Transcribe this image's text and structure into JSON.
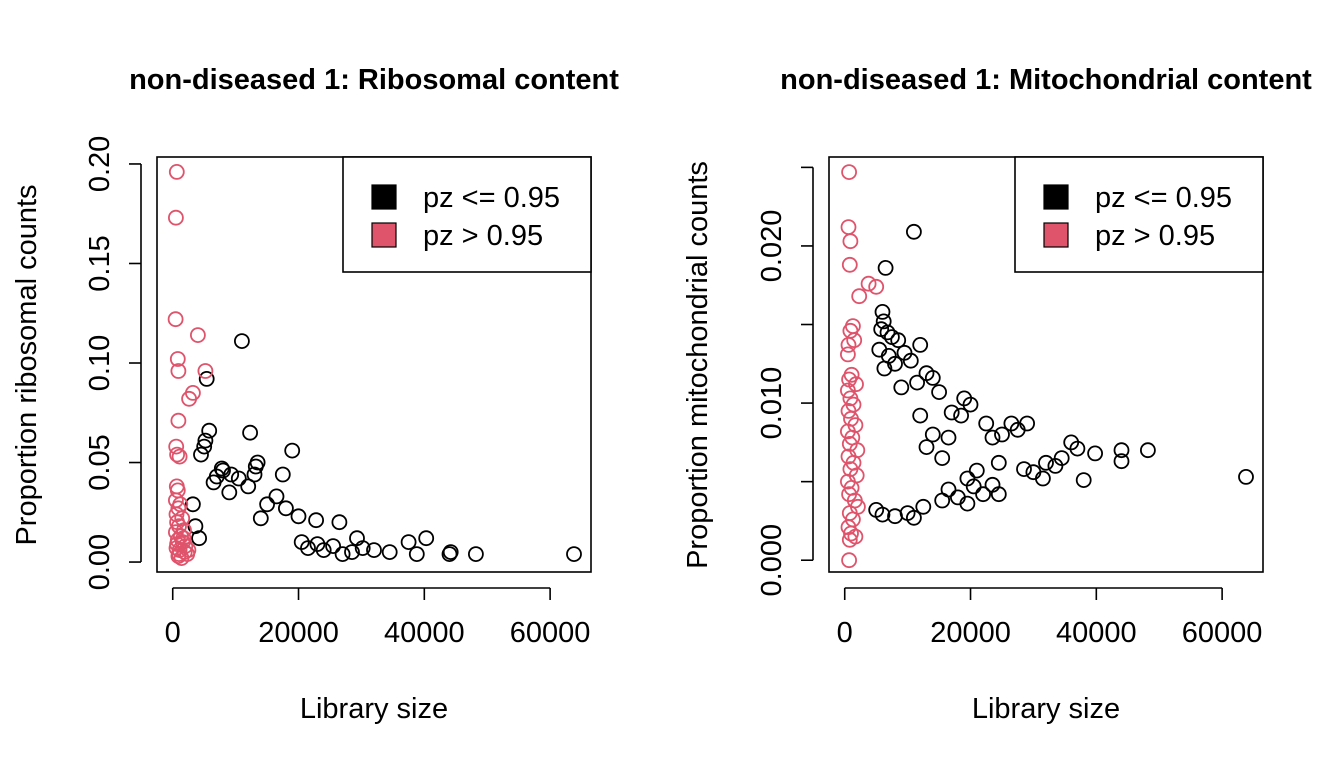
{
  "chart_data": [
    {
      "type": "scatter",
      "title": "non-diseased 1: Ribosomal content",
      "xlabel": "Library size",
      "ylabel": "Proportion ribosomal counts",
      "xlim": [
        -2500,
        66500
      ],
      "ylim": [
        -0.005,
        0.2035
      ],
      "xticks": [
        0,
        20000,
        40000,
        60000
      ],
      "xtick_labels": [
        "0",
        "20000",
        "40000",
        "60000"
      ],
      "yticks": [
        0.0,
        0.05,
        0.1,
        0.15,
        0.2
      ],
      "ytick_labels": [
        "0.00",
        "0.05",
        "0.10",
        "0.15",
        "0.20"
      ],
      "legend": {
        "position": "top-right",
        "entries": [
          {
            "label": "pz <= 0.95",
            "color": "#000000"
          },
          {
            "label": "pz > 0.95",
            "color": "#DF536B"
          }
        ]
      },
      "series": [
        {
          "name": "pz <= 0.95",
          "color": "#000000",
          "points": [
            [
              11000,
              0.111
            ],
            [
              5400,
              0.092
            ],
            [
              5800,
              0.066
            ],
            [
              5200,
              0.061
            ],
            [
              5000,
              0.058
            ],
            [
              4500,
              0.054
            ],
            [
              12300,
              0.065
            ],
            [
              19000,
              0.056
            ],
            [
              13500,
              0.05
            ],
            [
              13200,
              0.048
            ],
            [
              13000,
              0.044
            ],
            [
              17500,
              0.044
            ],
            [
              8000,
              0.046
            ],
            [
              7800,
              0.047
            ],
            [
              9300,
              0.044
            ],
            [
              10500,
              0.042
            ],
            [
              7000,
              0.043
            ],
            [
              6500,
              0.04
            ],
            [
              12000,
              0.038
            ],
            [
              16500,
              0.033
            ],
            [
              18000,
              0.027
            ],
            [
              20000,
              0.023
            ],
            [
              22800,
              0.021
            ],
            [
              26500,
              0.02
            ],
            [
              29300,
              0.012
            ],
            [
              37500,
              0.01
            ],
            [
              40300,
              0.012
            ],
            [
              38800,
              0.004
            ],
            [
              44200,
              0.005
            ],
            [
              44000,
              0.004
            ],
            [
              48200,
              0.004
            ],
            [
              63800,
              0.004
            ],
            [
              34500,
              0.005
            ],
            [
              32000,
              0.006
            ],
            [
              30200,
              0.007
            ],
            [
              28500,
              0.005
            ],
            [
              27000,
              0.004
            ],
            [
              25500,
              0.008
            ],
            [
              24000,
              0.006
            ],
            [
              23000,
              0.009
            ],
            [
              21500,
              0.007
            ],
            [
              20500,
              0.01
            ],
            [
              3200,
              0.029
            ],
            [
              3600,
              0.018
            ],
            [
              4200,
              0.012
            ],
            [
              15000,
              0.029
            ],
            [
              14000,
              0.022
            ],
            [
              9000,
              0.035
            ]
          ]
        },
        {
          "name": "pz > 0.95",
          "color": "#DF536B",
          "points": [
            [
              650,
              0.196
            ],
            [
              500,
              0.173
            ],
            [
              450,
              0.122
            ],
            [
              4000,
              0.114
            ],
            [
              800,
              0.102
            ],
            [
              5200,
              0.096
            ],
            [
              900,
              0.096
            ],
            [
              3200,
              0.085
            ],
            [
              2600,
              0.082
            ],
            [
              900,
              0.071
            ],
            [
              550,
              0.058
            ],
            [
              700,
              0.054
            ],
            [
              1100,
              0.053
            ],
            [
              650,
              0.038
            ],
            [
              800,
              0.036
            ],
            [
              500,
              0.031
            ],
            [
              1200,
              0.029
            ],
            [
              900,
              0.027
            ],
            [
              600,
              0.024
            ],
            [
              1500,
              0.022
            ],
            [
              700,
              0.02
            ],
            [
              1000,
              0.018
            ],
            [
              1800,
              0.016
            ],
            [
              500,
              0.015
            ],
            [
              1300,
              0.013
            ],
            [
              800,
              0.011
            ],
            [
              1600,
              0.01
            ],
            [
              2000,
              0.008
            ],
            [
              600,
              0.007
            ],
            [
              1100,
              0.006
            ],
            [
              1900,
              0.005
            ],
            [
              2300,
              0.004
            ],
            [
              900,
              0.003
            ],
            [
              1400,
              0.002
            ],
            [
              2500,
              0.006
            ],
            [
              700,
              0.009
            ],
            [
              1700,
              0.012
            ],
            [
              1000,
              0.004
            ]
          ]
        }
      ]
    },
    {
      "type": "scatter",
      "title": "non-diseased 1: Mitochondrial content",
      "xlabel": "Library size",
      "ylabel": "Proportion mitochondrial counts",
      "xlim": [
        -2500,
        66500
      ],
      "ylim": [
        -0.00075,
        0.02566
      ],
      "xticks": [
        0,
        20000,
        40000,
        60000
      ],
      "xtick_labels": [
        "0",
        "20000",
        "40000",
        "60000"
      ],
      "yticks": [
        0.0,
        0.005,
        0.01,
        0.015,
        0.02,
        0.025
      ],
      "ytick_labels": [
        "0.000",
        "",
        "0.010",
        "",
        "0.020",
        ""
      ],
      "legend": {
        "position": "top-right",
        "entries": [
          {
            "label": "pz <= 0.95",
            "color": "#000000"
          },
          {
            "label": "pz > 0.95",
            "color": "#DF536B"
          }
        ]
      },
      "series": [
        {
          "name": "pz <= 0.95",
          "color": "#000000",
          "points": [
            [
              11000,
              0.0209
            ],
            [
              6500,
              0.0186
            ],
            [
              6000,
              0.0158
            ],
            [
              6200,
              0.0152
            ],
            [
              5800,
              0.0147
            ],
            [
              6800,
              0.0145
            ],
            [
              7500,
              0.0142
            ],
            [
              8500,
              0.014
            ],
            [
              12000,
              0.0137
            ],
            [
              5500,
              0.0134
            ],
            [
              9500,
              0.0132
            ],
            [
              7000,
              0.013
            ],
            [
              10500,
              0.0127
            ],
            [
              8000,
              0.0125
            ],
            [
              6300,
              0.0122
            ],
            [
              13000,
              0.0119
            ],
            [
              14000,
              0.0116
            ],
            [
              11500,
              0.0113
            ],
            [
              9000,
              0.011
            ],
            [
              15000,
              0.0107
            ],
            [
              19000,
              0.0103
            ],
            [
              20000,
              0.0099
            ],
            [
              17000,
              0.0094
            ],
            [
              18500,
              0.0092
            ],
            [
              22500,
              0.0087
            ],
            [
              26500,
              0.0087
            ],
            [
              29000,
              0.0087
            ],
            [
              27500,
              0.0083
            ],
            [
              25000,
              0.008
            ],
            [
              23500,
              0.0078
            ],
            [
              36000,
              0.0075
            ],
            [
              37000,
              0.0071
            ],
            [
              39800,
              0.0068
            ],
            [
              44000,
              0.007
            ],
            [
              48200,
              0.007
            ],
            [
              44000,
              0.0063
            ],
            [
              38000,
              0.0051
            ],
            [
              31500,
              0.0052
            ],
            [
              30000,
              0.0056
            ],
            [
              33500,
              0.006
            ],
            [
              34500,
              0.0065
            ],
            [
              32000,
              0.0062
            ],
            [
              28500,
              0.0058
            ],
            [
              24500,
              0.0062
            ],
            [
              21000,
              0.0057
            ],
            [
              19500,
              0.0052
            ],
            [
              23500,
              0.0048
            ],
            [
              24500,
              0.0042
            ],
            [
              22000,
              0.0042
            ],
            [
              20500,
              0.0047
            ],
            [
              16500,
              0.0045
            ],
            [
              18000,
              0.004
            ],
            [
              15500,
              0.0038
            ],
            [
              19500,
              0.0036
            ],
            [
              12500,
              0.0034
            ],
            [
              10000,
              0.003
            ],
            [
              8000,
              0.0028
            ],
            [
              6000,
              0.0029
            ],
            [
              5000,
              0.0032
            ],
            [
              11000,
              0.0027
            ],
            [
              63800,
              0.0053
            ],
            [
              13000,
              0.0072
            ],
            [
              15500,
              0.0065
            ],
            [
              14000,
              0.008
            ],
            [
              12000,
              0.0092
            ],
            [
              16500,
              0.0078
            ]
          ]
        },
        {
          "name": "pz > 0.95",
          "color": "#DF536B",
          "points": [
            [
              700,
              0.0247
            ],
            [
              600,
              0.0212
            ],
            [
              900,
              0.0203
            ],
            [
              800,
              0.0188
            ],
            [
              2300,
              0.0168
            ],
            [
              3800,
              0.0176
            ],
            [
              5000,
              0.0174
            ],
            [
              1300,
              0.0149
            ],
            [
              900,
              0.0146
            ],
            [
              1500,
              0.014
            ],
            [
              600,
              0.0137
            ],
            [
              500,
              0.0131
            ],
            [
              1100,
              0.0118
            ],
            [
              700,
              0.0115
            ],
            [
              1800,
              0.0112
            ],
            [
              500,
              0.0108
            ],
            [
              900,
              0.0103
            ],
            [
              1400,
              0.0099
            ],
            [
              600,
              0.0095
            ],
            [
              1000,
              0.009
            ],
            [
              1700,
              0.0086
            ],
            [
              500,
              0.0082
            ],
            [
              1200,
              0.0078
            ],
            [
              800,
              0.0074
            ],
            [
              2000,
              0.007
            ],
            [
              600,
              0.0066
            ],
            [
              1400,
              0.0062
            ],
            [
              900,
              0.0058
            ],
            [
              1900,
              0.0054
            ],
            [
              500,
              0.005
            ],
            [
              1100,
              0.0046
            ],
            [
              700,
              0.0042
            ],
            [
              1600,
              0.0038
            ],
            [
              2100,
              0.0034
            ],
            [
              800,
              0.003
            ],
            [
              1300,
              0.0026
            ],
            [
              600,
              0.0021
            ],
            [
              1000,
              0.0017
            ],
            [
              1700,
              0.0015
            ],
            [
              800,
              0.0013
            ],
            [
              700,
              0.0
            ]
          ]
        }
      ]
    }
  ]
}
